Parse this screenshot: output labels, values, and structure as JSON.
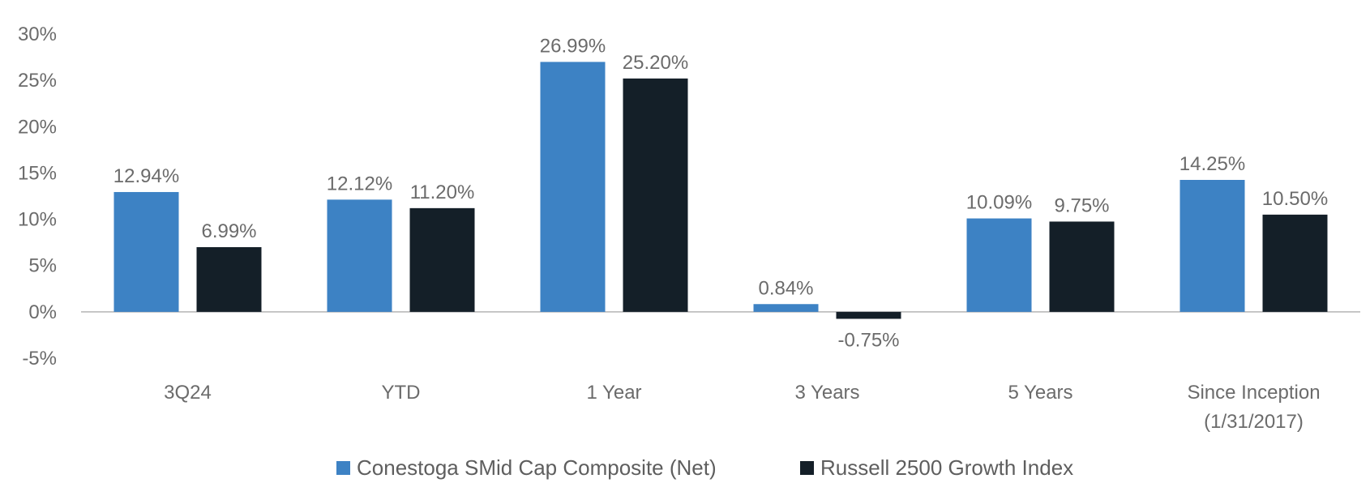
{
  "chart_data": {
    "type": "bar",
    "categories": [
      [
        "3Q24"
      ],
      [
        "YTD"
      ],
      [
        "1 Year"
      ],
      [
        "3 Years"
      ],
      [
        "5 Years"
      ],
      [
        "Since Inception",
        "(1/31/2017)"
      ]
    ],
    "series": [
      {
        "name": "Conestoga SMid Cap Composite (Net)",
        "color": "#3d82c4",
        "values": [
          12.94,
          12.12,
          26.99,
          0.84,
          10.09,
          14.25
        ],
        "labels": [
          "12.94%",
          "12.12%",
          "26.99%",
          "0.84%",
          "10.09%",
          "14.25%"
        ]
      },
      {
        "name": "Russell 2500 Growth Index",
        "color": "#141f28",
        "values": [
          6.99,
          11.2,
          25.2,
          -0.75,
          9.75,
          10.5
        ],
        "labels": [
          "6.99%",
          "11.20%",
          "25.20%",
          "-0.75%",
          "9.75%",
          "10.50%"
        ]
      }
    ],
    "ylim": [
      -5,
      30
    ],
    "yticks": [
      30,
      25,
      20,
      15,
      10,
      5,
      0,
      -5
    ],
    "ytick_labels": [
      "30%",
      "25%",
      "20%",
      "15%",
      "10%",
      "5%",
      "0%",
      "-5%"
    ],
    "zero_line_color": "#a6a6a6",
    "grid": false,
    "legend": "bottom-center",
    "title": "",
    "xlabel": "",
    "ylabel": ""
  }
}
